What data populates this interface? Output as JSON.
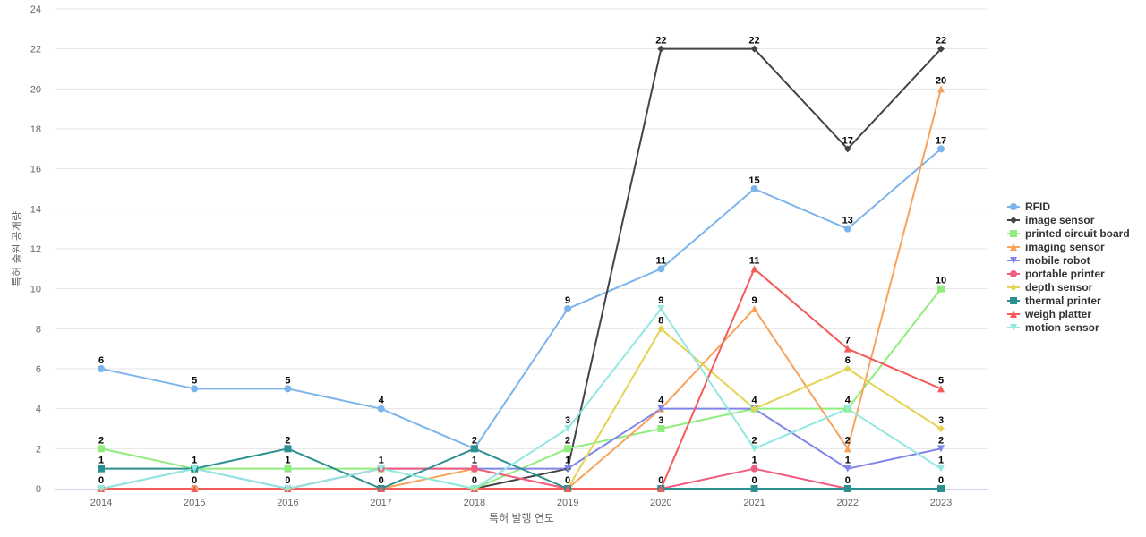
{
  "chart_data": {
    "type": "line",
    "title": "",
    "xlabel": "특허 발행 연도",
    "ylabel": "특허 출원 공개량",
    "x": [
      "2014",
      "2015",
      "2016",
      "2017",
      "2018",
      "2019",
      "2020",
      "2021",
      "2022",
      "2023"
    ],
    "ylim": [
      0,
      24
    ],
    "yticks": [
      0,
      2,
      4,
      6,
      8,
      10,
      12,
      14,
      16,
      18,
      20,
      22,
      24
    ],
    "grid": true,
    "legend_position": "right",
    "series": [
      {
        "name": "RFID",
        "color": "#7cb5ec",
        "marker": "circle",
        "values": [
          6,
          5,
          5,
          4,
          2,
          9,
          11,
          15,
          13,
          17
        ]
      },
      {
        "name": "image sensor",
        "color": "#434348",
        "marker": "diamond",
        "values": [
          0,
          0,
          0,
          0,
          0,
          1,
          22,
          22,
          17,
          22
        ]
      },
      {
        "name": "printed circuit board",
        "color": "#90ed7d",
        "marker": "square",
        "values": [
          2,
          1,
          1,
          1,
          0,
          2,
          3,
          4,
          4,
          10
        ]
      },
      {
        "name": "imaging sensor",
        "color": "#f7a35c",
        "marker": "triangle",
        "values": [
          0,
          0,
          0,
          0,
          1,
          0,
          4,
          9,
          2,
          20
        ]
      },
      {
        "name": "mobile robot",
        "color": "#8085e9",
        "marker": "triangle-down",
        "values": [
          0,
          1,
          0,
          1,
          1,
          1,
          4,
          4,
          1,
          2
        ]
      },
      {
        "name": "portable printer",
        "color": "#f15c80",
        "marker": "circle",
        "values": [
          0,
          0,
          0,
          1,
          1,
          0,
          0,
          1,
          0,
          0
        ]
      },
      {
        "name": "depth sensor",
        "color": "#e4d354",
        "marker": "diamond",
        "values": [
          0,
          0,
          0,
          0,
          0,
          0,
          8,
          4,
          6,
          3
        ]
      },
      {
        "name": "thermal printer",
        "color": "#2b908f",
        "marker": "square",
        "values": [
          1,
          1,
          2,
          0,
          2,
          0,
          0,
          0,
          0,
          0
        ]
      },
      {
        "name": "weigh platter",
        "color": "#f45b5b",
        "marker": "triangle",
        "values": [
          0,
          0,
          0,
          0,
          0,
          0,
          0,
          11,
          7,
          5
        ]
      },
      {
        "name": "motion sensor",
        "color": "#91e8e1",
        "marker": "triangle-down",
        "values": [
          0,
          1,
          0,
          1,
          0,
          3,
          9,
          2,
          4,
          1
        ]
      }
    ],
    "data_labels": [
      {
        "x": 0,
        "y": 6,
        "text": "6"
      },
      {
        "x": 0,
        "y": 2,
        "text": "2"
      },
      {
        "x": 0,
        "y": 1,
        "text": "1"
      },
      {
        "x": 0,
        "y": 0,
        "text": "0"
      },
      {
        "x": 1,
        "y": 5,
        "text": "5"
      },
      {
        "x": 1,
        "y": 1,
        "text": "1"
      },
      {
        "x": 1,
        "y": 0,
        "text": "0"
      },
      {
        "x": 2,
        "y": 5,
        "text": "5"
      },
      {
        "x": 2,
        "y": 2,
        "text": "2"
      },
      {
        "x": 2,
        "y": 1,
        "text": "1"
      },
      {
        "x": 2,
        "y": 0,
        "text": "0"
      },
      {
        "x": 3,
        "y": 4,
        "text": "4"
      },
      {
        "x": 3,
        "y": 1,
        "text": "1"
      },
      {
        "x": 3,
        "y": 0,
        "text": "0"
      },
      {
        "x": 4,
        "y": 2,
        "text": "2"
      },
      {
        "x": 4,
        "y": 1,
        "text": "1"
      },
      {
        "x": 4,
        "y": 0,
        "text": "0"
      },
      {
        "x": 5,
        "y": 9,
        "text": "9"
      },
      {
        "x": 5,
        "y": 3,
        "text": "3"
      },
      {
        "x": 5,
        "y": 2,
        "text": "2"
      },
      {
        "x": 5,
        "y": 1,
        "text": "1"
      },
      {
        "x": 5,
        "y": 0,
        "text": "0"
      },
      {
        "x": 6,
        "y": 22,
        "text": "22"
      },
      {
        "x": 6,
        "y": 11,
        "text": "11"
      },
      {
        "x": 6,
        "y": 9,
        "text": "9"
      },
      {
        "x": 6,
        "y": 8,
        "text": "8"
      },
      {
        "x": 6,
        "y": 4,
        "text": "4"
      },
      {
        "x": 6,
        "y": 3,
        "text": "3"
      },
      {
        "x": 6,
        "y": 0,
        "text": "0"
      },
      {
        "x": 7,
        "y": 22,
        "text": "22"
      },
      {
        "x": 7,
        "y": 15,
        "text": "15"
      },
      {
        "x": 7,
        "y": 11,
        "text": "11"
      },
      {
        "x": 7,
        "y": 9,
        "text": "9"
      },
      {
        "x": 7,
        "y": 4,
        "text": "4"
      },
      {
        "x": 7,
        "y": 2,
        "text": "2"
      },
      {
        "x": 7,
        "y": 1,
        "text": "1"
      },
      {
        "x": 7,
        "y": 0,
        "text": "0"
      },
      {
        "x": 8,
        "y": 17,
        "text": "17"
      },
      {
        "x": 8,
        "y": 13,
        "text": "13"
      },
      {
        "x": 8,
        "y": 7,
        "text": "7"
      },
      {
        "x": 8,
        "y": 6,
        "text": "6"
      },
      {
        "x": 8,
        "y": 4,
        "text": "4"
      },
      {
        "x": 8,
        "y": 2,
        "text": "2"
      },
      {
        "x": 8,
        "y": 1,
        "text": "1"
      },
      {
        "x": 8,
        "y": 0,
        "text": "0"
      },
      {
        "x": 9,
        "y": 22,
        "text": "22"
      },
      {
        "x": 9,
        "y": 20,
        "text": "20"
      },
      {
        "x": 9,
        "y": 17,
        "text": "17"
      },
      {
        "x": 9,
        "y": 10,
        "text": "10"
      },
      {
        "x": 9,
        "y": 5,
        "text": "5"
      },
      {
        "x": 9,
        "y": 3,
        "text": "3"
      },
      {
        "x": 9,
        "y": 2,
        "text": "2"
      },
      {
        "x": 9,
        "y": 1,
        "text": "1"
      },
      {
        "x": 9,
        "y": 0,
        "text": "0"
      }
    ]
  }
}
